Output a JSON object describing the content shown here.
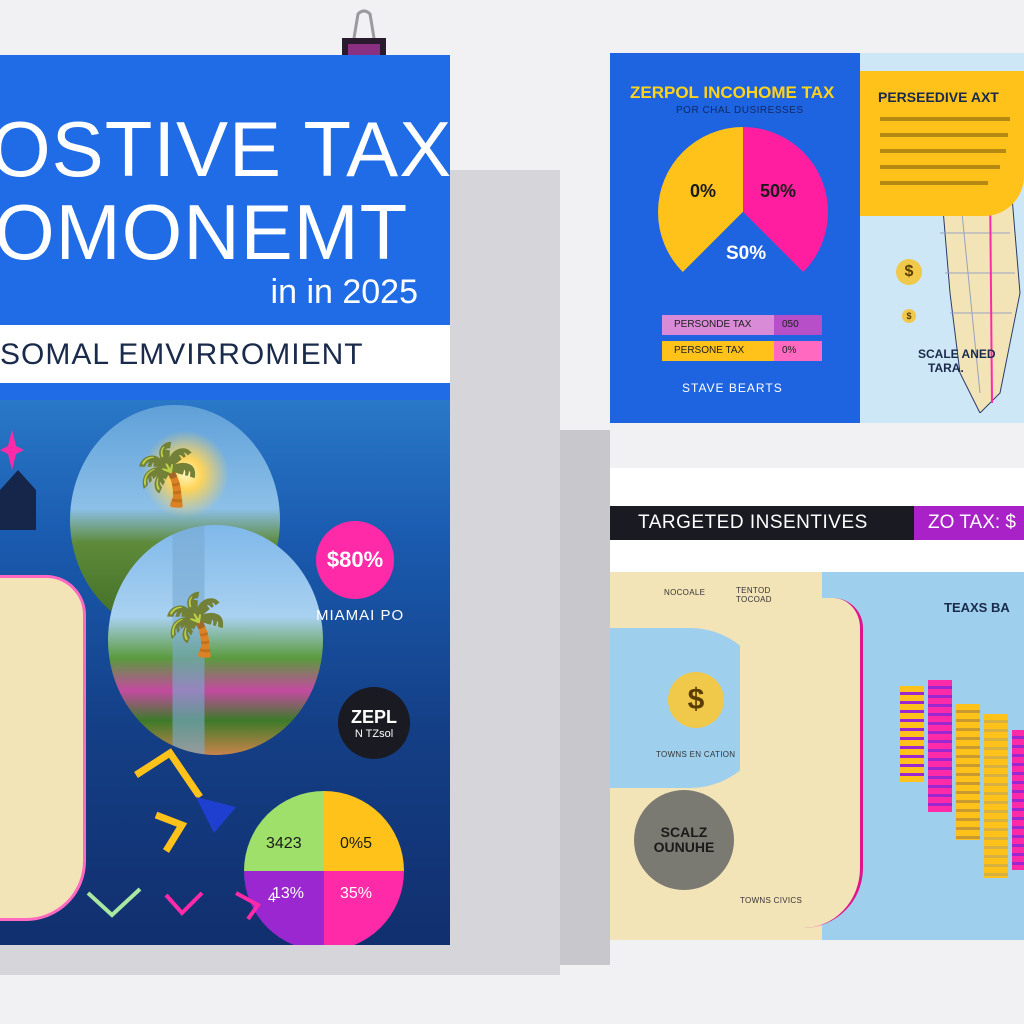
{
  "left_poster": {
    "headline_line1": "OSTIVE TAX",
    "headline_line2": "OMONEMT",
    "year_line": "in in 2025",
    "band_text": "SOMAL EMVIRROMIENT",
    "pink_badge": "$80%",
    "city_label": "MIAMAI PO",
    "dark_badge_big": "ZEPL",
    "dark_badge_small": "N TZsol",
    "pie_labels": [
      "3423",
      "0%5",
      "13%",
      "35%"
    ],
    "corner_number": "4"
  },
  "top_right_poster": {
    "title": "ZERPOL INCOHOME TAX",
    "subtitle": "POR CHAL DUSIRESSES",
    "pie_left_label": "0%",
    "pie_right_label": "50%",
    "pie_center_label": "S0%",
    "rows": [
      {
        "label": "PERSONDE TAX",
        "value": "050"
      },
      {
        "label": "PERSONE TAX",
        "value": "0%"
      }
    ],
    "footer": "STAVE BEARTS",
    "right_title": "PERSEEDIVE AXT",
    "scale_label_line1": "SCALE ANED",
    "scale_label_line2": "TARA."
  },
  "bottom_right_poster": {
    "band_text": "TARGETED INSENTIVES",
    "band_highlight": "ZO TAX: $",
    "map_title": "TEAXS BA",
    "dark_circle_text_line1": "SCALZ",
    "dark_circle_text_line2": "OUNUHE",
    "map_labels": [
      "NOCOALE",
      "TENTOD TOCOAD",
      "TOWNS EN CATION",
      "TOWNS CIVICS"
    ]
  },
  "colors": {
    "poster_blue": "#1f6ce6",
    "accent_pink": "#ff2aa8",
    "accent_yellow": "#ffc21a",
    "accent_purple": "#9b27d0",
    "map_sand": "#f3e4b8",
    "water_blue": "#9ed0ee"
  }
}
